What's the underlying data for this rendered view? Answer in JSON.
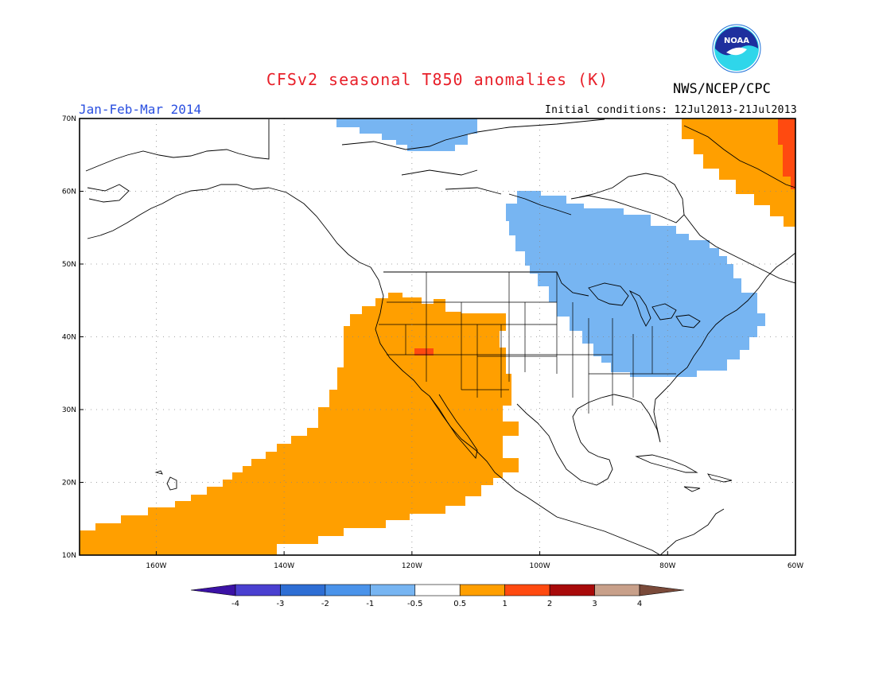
{
  "title": "CFSv2 seasonal T850 anomalies (K)",
  "agency": "NWS/NCEP/CPC",
  "logo_text": "NOAA",
  "period": "Jan-Feb-Mar 2014",
  "initial_conditions": "Initial conditions: 12Jul2013-21Jul2013",
  "map": {
    "extent": {
      "lon": [
        -172,
        -60
      ],
      "lat": [
        10,
        70
      ]
    },
    "lat_ticks": [
      {
        "v": 70,
        "label": "70N"
      },
      {
        "v": 60,
        "label": "60N"
      },
      {
        "v": 50,
        "label": "50N"
      },
      {
        "v": 40,
        "label": "40N"
      },
      {
        "v": 30,
        "label": "30N"
      },
      {
        "v": 20,
        "label": "20N"
      },
      {
        "v": 10,
        "label": "10N"
      }
    ],
    "lon_ticks": [
      {
        "v": -160,
        "label": "160W"
      },
      {
        "v": -140,
        "label": "140W"
      },
      {
        "v": -120,
        "label": "120W"
      },
      {
        "v": -100,
        "label": "100W"
      },
      {
        "v": -80,
        "label": "80W"
      },
      {
        "v": -60,
        "label": "60W"
      }
    ],
    "grid": true
  },
  "colorbar": {
    "colors": [
      "#3b12a5",
      "#4a40d0",
      "#2e6ed4",
      "#4a93ea",
      "#77b5f2",
      "#ffffff",
      "#ff9f00",
      "#ff4a10",
      "#a80a0a",
      "#c8a08a",
      "#7a4a3a"
    ],
    "labels": [
      "-4",
      "-3",
      "-2",
      "-1",
      "-0.5",
      "0.5",
      "1",
      "2",
      "3",
      "4"
    ]
  },
  "anomaly_regions": [
    {
      "name": "pacific-west-warm",
      "level": "0.5 to 1",
      "color": "#ff9f00"
    },
    {
      "name": "nevada-warm-core",
      "level": "1 to 2",
      "color": "#ff4a10"
    },
    {
      "name": "greenland-warm",
      "level": "0.5 to 1",
      "color": "#ff9f00"
    },
    {
      "name": "greenland-warm-core",
      "level": "1 to 2",
      "color": "#ff4a10"
    },
    {
      "name": "canada-east-cool",
      "level": "-1 to -0.5",
      "color": "#77b5f2"
    },
    {
      "name": "arctic-cool",
      "level": "-1 to -0.5",
      "color": "#77b5f2"
    }
  ]
}
